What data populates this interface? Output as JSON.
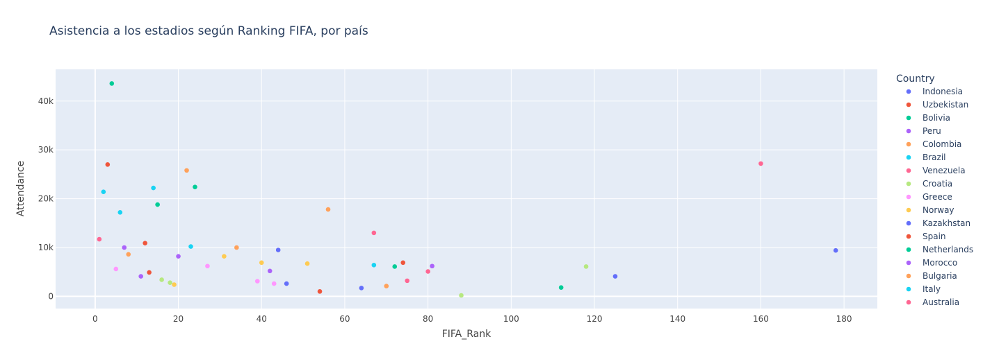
{
  "chart_data": {
    "type": "scatter",
    "title": "Asistencia a los estadios según Ranking FIFA, por país",
    "xlabel": "FIFA_Rank",
    "ylabel": "Attendance",
    "xlim": [
      -9.5,
      188
    ],
    "ylim": [
      -2500,
      46500
    ],
    "x_ticks": [
      0,
      20,
      40,
      60,
      80,
      100,
      120,
      140,
      160,
      180
    ],
    "x_tick_labels": [
      "0",
      "20",
      "40",
      "60",
      "80",
      "100",
      "120",
      "140",
      "160",
      "180"
    ],
    "y_ticks": [
      0,
      10000,
      20000,
      30000,
      40000
    ],
    "y_tick_labels": [
      "0",
      "10k",
      "20k",
      "30k",
      "40k"
    ],
    "grid": true,
    "legend_title": "Country",
    "legend_position": "right",
    "series": [
      {
        "name": "Indonesia",
        "color": "#636efa",
        "points": [
          [
            44,
            9500
          ],
          [
            46,
            2600
          ],
          [
            64,
            1700
          ],
          [
            125,
            4100
          ],
          [
            178,
            9400
          ]
        ]
      },
      {
        "name": "Uzbekistan",
        "color": "#EF553B",
        "points": [
          [
            3,
            27000
          ],
          [
            12,
            10900
          ],
          [
            13,
            4900
          ],
          [
            54,
            1000
          ],
          [
            74,
            6900
          ]
        ]
      },
      {
        "name": "Bolivia",
        "color": "#00cc96",
        "points": [
          [
            4,
            43600
          ],
          [
            15,
            18800
          ],
          [
            24,
            22400
          ],
          [
            72,
            6100
          ],
          [
            112,
            1800
          ]
        ]
      },
      {
        "name": "Peru",
        "color": "#ab63fa",
        "points": [
          [
            7,
            10000
          ],
          [
            11,
            4100
          ],
          [
            20,
            8200
          ],
          [
            42,
            5200
          ],
          [
            81,
            6200
          ]
        ]
      },
      {
        "name": "Colombia",
        "color": "#FFA15A",
        "points": [
          [
            8,
            8600
          ],
          [
            22,
            25800
          ],
          [
            34,
            10000
          ],
          [
            56,
            17800
          ],
          [
            70,
            2100
          ]
        ]
      },
      {
        "name": "Brazil",
        "color": "#19d3f3",
        "points": [
          [
            2,
            21400
          ],
          [
            6,
            17200
          ],
          [
            14,
            22200
          ],
          [
            23,
            10200
          ],
          [
            67,
            6400
          ]
        ]
      },
      {
        "name": "Venezuela",
        "color": "#FF6692",
        "points": [
          [
            67,
            13000
          ],
          [
            75,
            3200
          ],
          [
            80,
            5100
          ]
        ]
      },
      {
        "name": "Croatia",
        "color": "#B6E880",
        "points": [
          [
            16,
            3400
          ],
          [
            18,
            2800
          ],
          [
            88,
            200
          ],
          [
            118,
            6100
          ]
        ]
      },
      {
        "name": "Greece",
        "color": "#FF97FF",
        "points": [
          [
            5,
            5600
          ],
          [
            27,
            6200
          ],
          [
            39,
            3100
          ],
          [
            43,
            2600
          ]
        ]
      },
      {
        "name": "Norway",
        "color": "#FECB52",
        "points": [
          [
            19,
            2400
          ],
          [
            31,
            8200
          ],
          [
            40,
            6900
          ],
          [
            51,
            6700
          ]
        ]
      },
      {
        "name": "Kazakhstan",
        "color": "#636efa",
        "points": []
      },
      {
        "name": "Spain",
        "color": "#EF553B",
        "points": []
      },
      {
        "name": "Netherlands",
        "color": "#00cc96",
        "points": []
      },
      {
        "name": "Morocco",
        "color": "#ab63fa",
        "points": []
      },
      {
        "name": "Bulgaria",
        "color": "#FFA15A",
        "points": []
      },
      {
        "name": "Italy",
        "color": "#19d3f3",
        "points": []
      },
      {
        "name": "Australia",
        "color": "#FF6692",
        "points": [
          [
            1,
            11700
          ],
          [
            160,
            27200
          ]
        ]
      }
    ]
  }
}
